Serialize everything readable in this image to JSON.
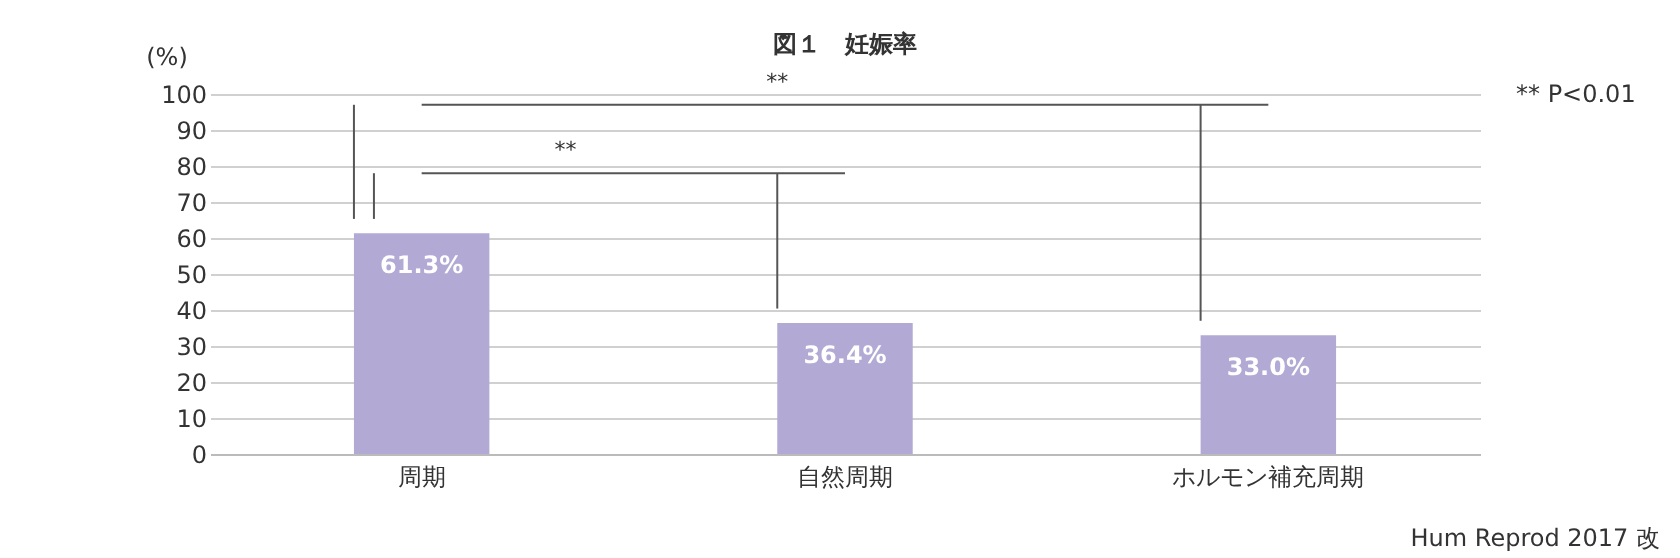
{
  "chart_data": {
    "type": "bar",
    "title": "図１　妊娠率",
    "ylabel": "(%)",
    "categories": [
      "周期",
      "自然周期",
      "ホルモン補充周期"
    ],
    "values": [
      61.3,
      36.4,
      33.0
    ],
    "color": "#b2aad4",
    "value_labels": [
      "61.3%",
      "36.4%",
      "33.0%"
    ],
    "ylim": [
      0,
      100
    ],
    "yticks": [
      0,
      10,
      20,
      30,
      40,
      50,
      60,
      70,
      80,
      90,
      100
    ],
    "grid": "y",
    "annotations": [
      "**",
      "**",
      "**  P<0.01",
      "Hum Reprod 2017 改"
    ]
  }
}
